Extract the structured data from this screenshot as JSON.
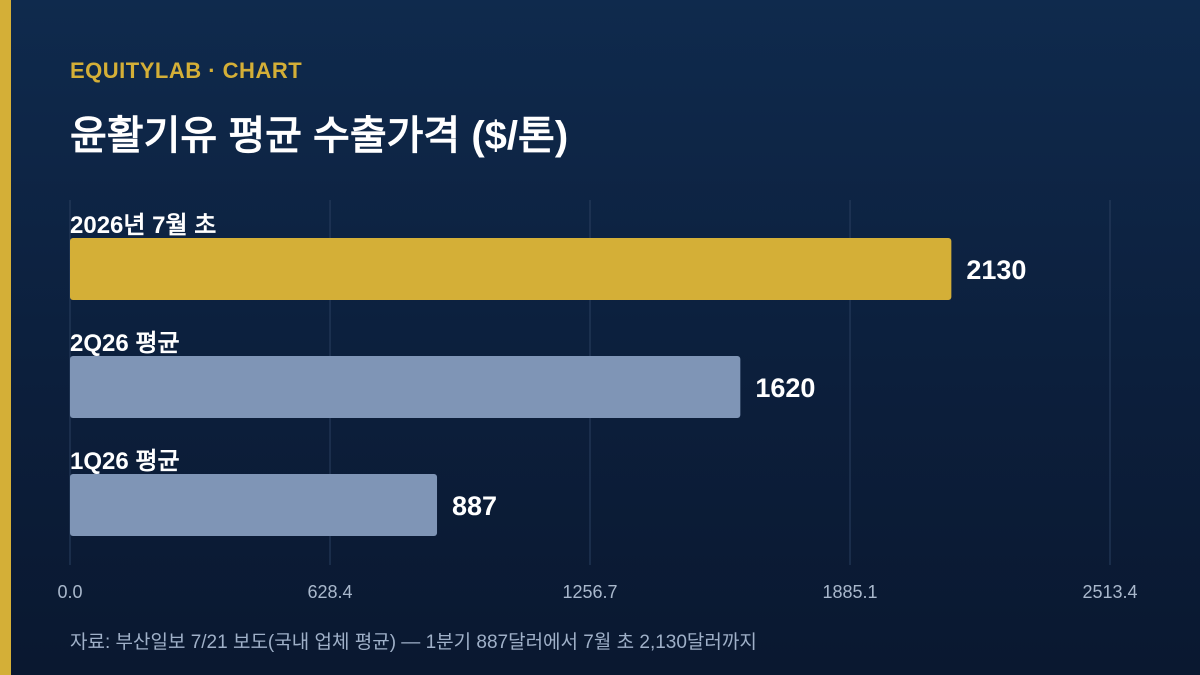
{
  "header": {
    "brand": "EQUITYLAB · CHART",
    "title": "윤활기유 평균 수출가격 ($/톤)"
  },
  "footer": {
    "source": "자료: 부산일보 7/21 보도(국내 업체 평균) — 1분기 887달러에서 7월 초 2,130달러까지"
  },
  "colors": {
    "background": "#0c1f3c",
    "accent": "#d4af37",
    "highlight_bar": "#d4af37",
    "bar": "#7f95b6"
  },
  "chart_data": {
    "type": "bar",
    "orientation": "horizontal",
    "categories": [
      "2026년 7월 초",
      "2Q26 평균",
      "1Q26 평균"
    ],
    "values": [
      2130,
      1620,
      887
    ],
    "value_labels": [
      "2130",
      "1620",
      "887"
    ],
    "highlight_index": 0,
    "xlim": [
      0,
      2513.4
    ],
    "xticks": [
      "0.0",
      "628.4",
      "1256.7",
      "1885.1",
      "2513.4"
    ],
    "grid": true
  }
}
